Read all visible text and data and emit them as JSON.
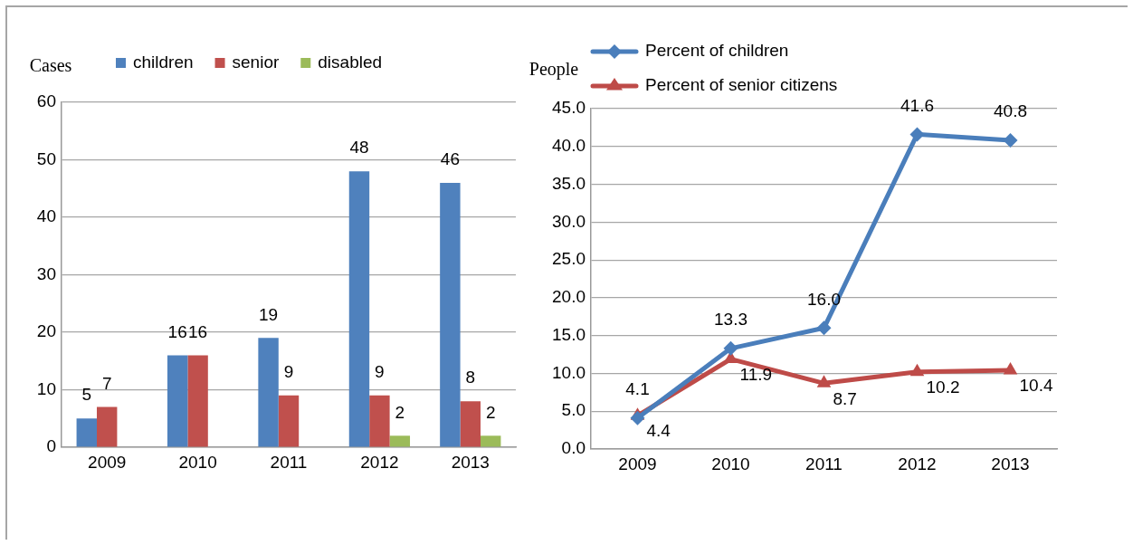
{
  "chart_data": [
    {
      "type": "bar",
      "ylabel": "Cases",
      "categories": [
        "2009",
        "2010",
        "2011",
        "2012",
        "2013"
      ],
      "series": [
        {
          "name": "children",
          "color": "#4f81bd",
          "values": [
            5,
            16,
            19,
            48,
            46
          ]
        },
        {
          "name": "senior",
          "color": "#c0504d",
          "values": [
            7,
            16,
            9,
            9,
            8
          ]
        },
        {
          "name": "disabled",
          "color": "#9bbb59",
          "values": [
            null,
            null,
            null,
            2,
            2
          ]
        }
      ],
      "ylim": [
        0,
        60
      ],
      "yticks": [
        0,
        10,
        20,
        30,
        40,
        50,
        60
      ],
      "grid": "y",
      "legend": "top",
      "data_labels": true
    },
    {
      "type": "line",
      "ylabel": "People",
      "categories": [
        "2009",
        "2010",
        "2011",
        "2012",
        "2013"
      ],
      "series": [
        {
          "name": "Percent of children",
          "color": "#4a7ebb",
          "marker": "diamond",
          "values": [
            4.1,
            13.3,
            16.0,
            41.6,
            40.8
          ],
          "value_labels": [
            "4.1",
            "13.3",
            "16.0",
            "41.6",
            "40.8"
          ]
        },
        {
          "name": "Percent of senior citizens",
          "color": "#be4b48",
          "marker": "triangle",
          "values": [
            4.4,
            11.9,
            8.7,
            10.2,
            10.4
          ],
          "value_labels": [
            "4.4",
            "11.9",
            "8.7",
            "10.2",
            "10.4"
          ]
        }
      ],
      "ylim": [
        0,
        45
      ],
      "yticks": [
        {
          "value": 0,
          "label": "0.0"
        },
        {
          "value": 5,
          "label": "5.0"
        },
        {
          "value": 10,
          "label": "10.0"
        },
        {
          "value": 15,
          "label": "15.0"
        },
        {
          "value": 20,
          "label": "20.0"
        },
        {
          "value": 25,
          "label": "25.0"
        },
        {
          "value": 30,
          "label": "30.0"
        },
        {
          "value": 35,
          "label": "35.0"
        },
        {
          "value": 40,
          "label": "40.0"
        },
        {
          "value": 45,
          "label": "45.0"
        }
      ],
      "grid": "y",
      "legend": "top left"
    }
  ]
}
